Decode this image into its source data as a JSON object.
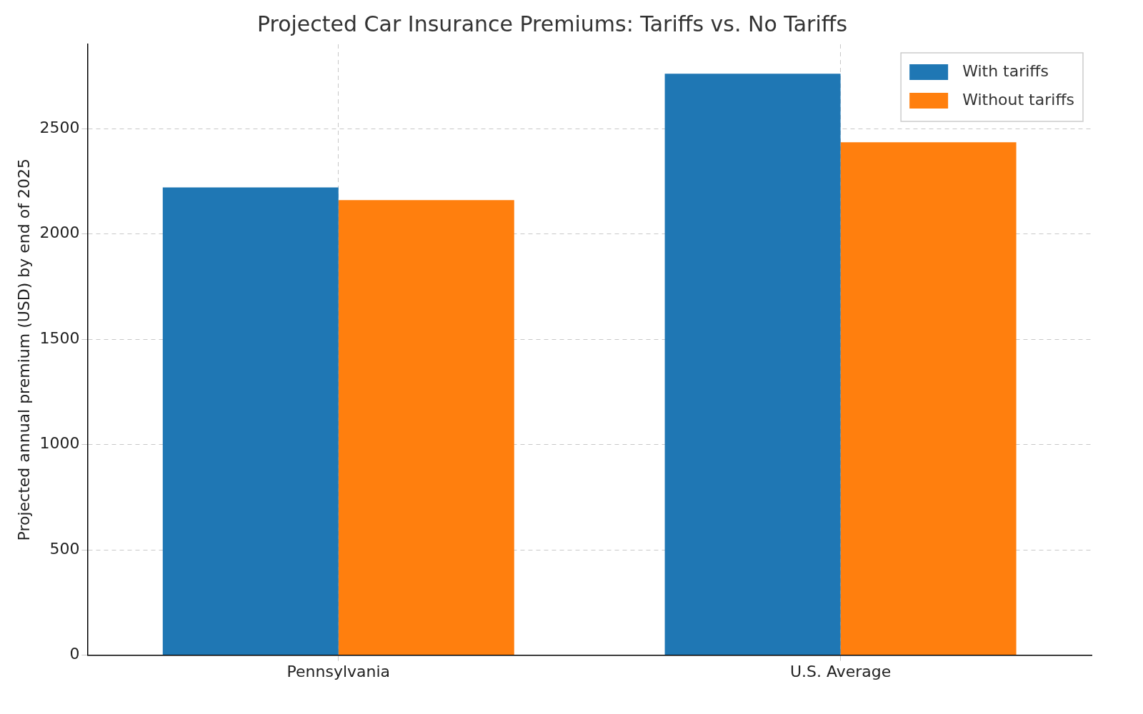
{
  "chart_data": {
    "type": "bar",
    "title": "Projected Car Insurance Premiums: Tariffs vs. No Tariffs",
    "ylabel": "Projected annual premium (USD) by end of 2025",
    "categories": [
      "Pennsylvania",
      "U.S. Average"
    ],
    "series": [
      {
        "name": "With tariffs",
        "color": "#1f77b4",
        "values": [
          2220,
          2760
        ]
      },
      {
        "name": "Without tariffs",
        "color": "#ff7f0e",
        "values": [
          2160,
          2435
        ]
      }
    ],
    "ylim": [
      0,
      2900
    ],
    "yticks": [
      0,
      500,
      1000,
      1500,
      2000,
      2500
    ],
    "grid": true,
    "legend": "top right"
  }
}
